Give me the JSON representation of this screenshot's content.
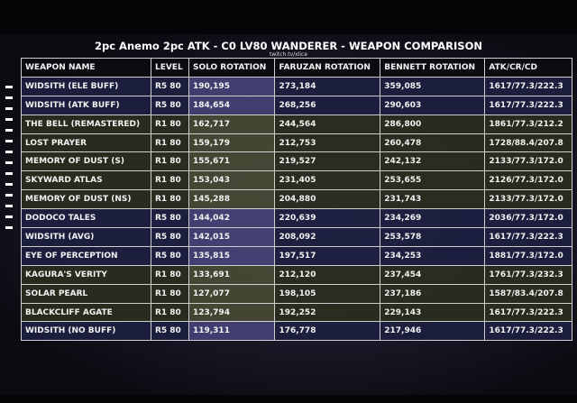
{
  "title": "2pc Anemo 2pc ATK - C0 LV80 WANDERER - WEAPON COMPARISON",
  "credit": "twitch.tv/xlice",
  "columns": [
    "WEAPON NAME",
    "LEVEL",
    "SOLO ROTATION",
    "FARUZAN ROTATION",
    "BENNETT ROTATION",
    "ATK/CR/CD"
  ],
  "rows": [
    [
      "WIDSITH (ELE BUFF)",
      "R5 80",
      "190,195",
      "273,184",
      "359,085",
      "1617/77.3/222.3"
    ],
    [
      "WIDSITH (ATK BUFF)",
      "R5 80",
      "184,654",
      "268,256",
      "290,603",
      "1617/77.3/222.3"
    ],
    [
      "THE BELL (REMASTERED)",
      "R1 80",
      "162,717",
      "244,564",
      "286,800",
      "1861/77.3/212.2"
    ],
    [
      "LOST PRAYER",
      "R1 80",
      "159,179",
      "212,753",
      "260,478",
      "1728/88.4/207.8"
    ],
    [
      "MEMORY OF DUST (S)",
      "R1 80",
      "155,671",
      "219,527",
      "242,132",
      "2133/77.3/172.0"
    ],
    [
      "SKYWARD ATLAS",
      "R1 80",
      "153,043",
      "231,405",
      "253,655",
      "2126/77.3/172.0"
    ],
    [
      "MEMORY OF DUST (NS)",
      "R1 80",
      "145,288",
      "204,880",
      "231,743",
      "2133/77.3/172.0"
    ],
    [
      "DODOCO TALES",
      "R5 80",
      "144,042",
      "220,639",
      "234,269",
      "2036/77.3/172.0"
    ],
    [
      "WIDSITH (AVG)",
      "R5 80",
      "142,015",
      "208,092",
      "253,578",
      "1617/77.3/222.3"
    ],
    [
      "EYE OF PERCEPTION",
      "R5 80",
      "135,815",
      "197,517",
      "234,253",
      "1881/77.3/172.0"
    ],
    [
      "KAGURA'S VERITY",
      "R1 80",
      "133,691",
      "212,120",
      "237,454",
      "1761/77.3/232.3"
    ],
    [
      "SOLAR PEARL",
      "R1 80",
      "127,077",
      "198,105",
      "237,186",
      "1587/83.4/207.8"
    ],
    [
      "BLACKCLIFF AGATE",
      "R1 80",
      "123,794",
      "192,252",
      "229,143",
      "1617/77.3/222.3"
    ],
    [
      "WIDSITH (NO BUFF)",
      "R5 80",
      "119,311",
      "176,778",
      "217,946",
      "1617/77.3/222.3"
    ]
  ],
  "colors": {
    "r5_row": "#1c2040",
    "r1_row": "#2a2e1e",
    "header": "#0b0b10"
  }
}
